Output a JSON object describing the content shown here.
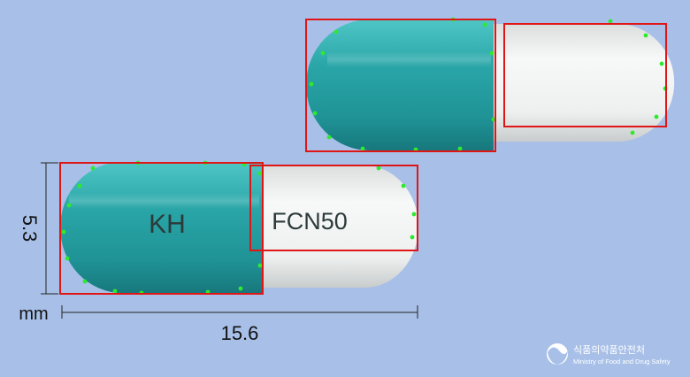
{
  "capsule_front": {
    "left_imprint": "KH",
    "right_imprint": "FCN50"
  },
  "dimensions": {
    "unit": "mm",
    "height": "5.3",
    "length": "15.6"
  },
  "watermark": {
    "title_ko": "식품의약품안전처",
    "subtitle_en": "Ministry of Food and Drug Safety"
  },
  "colors": {
    "background": "#a8c0e8",
    "cap_teal": "#2fa3a6",
    "body_white": "#f2f4f4",
    "detection_box": "#e01616",
    "contour_points": "#2eea2e"
  }
}
